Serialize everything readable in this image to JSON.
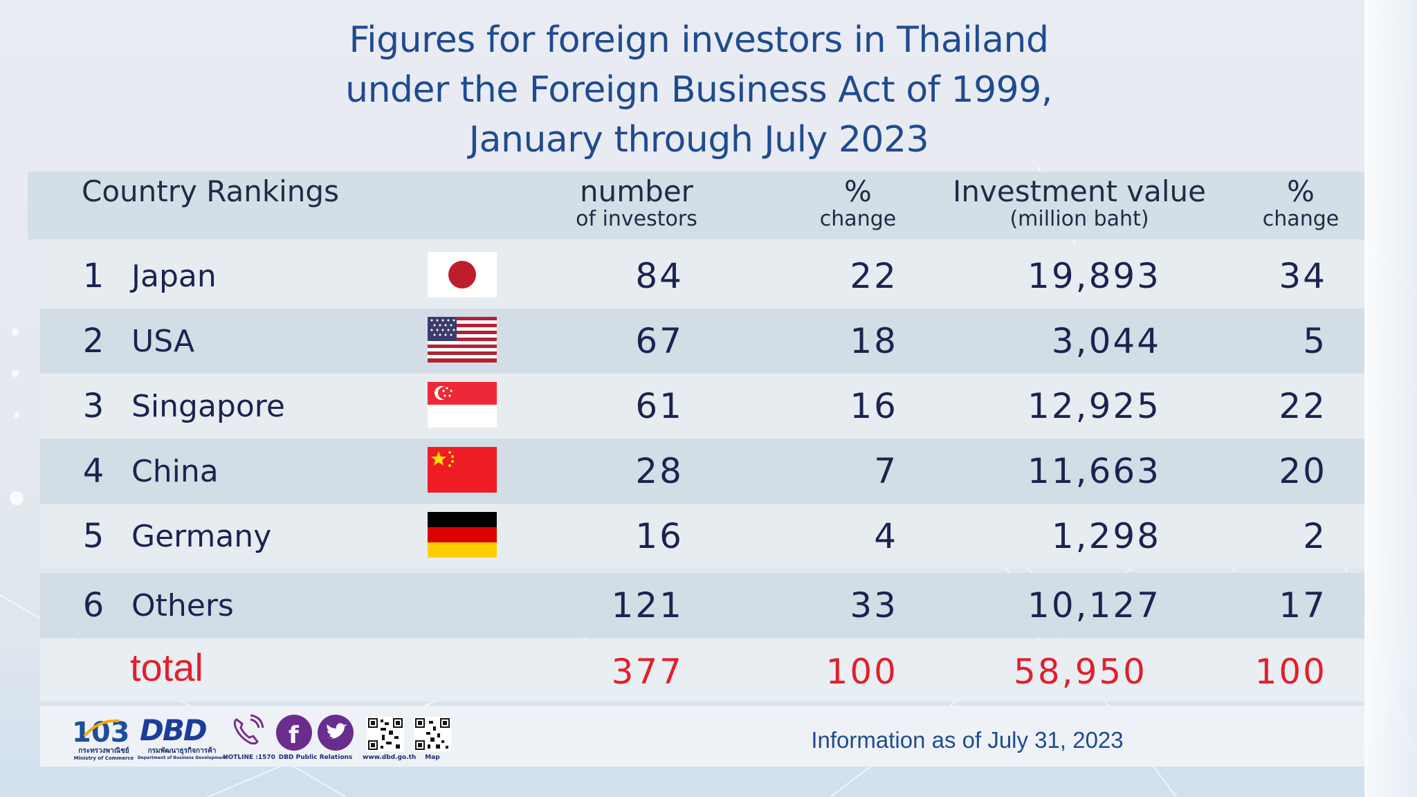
{
  "title_lines": [
    "Figures for foreign investors in Thailand",
    "under the Foreign Business Act of 1999,",
    "January through July 2023"
  ],
  "headers": {
    "country": "Country Rankings",
    "number_top": "number",
    "number_bottom": "of investors",
    "pct1_top": "%",
    "pct1_bottom": "change",
    "value_top": "Investment value",
    "value_bottom": "(million baht)",
    "pct2_top": "%",
    "pct2_bottom": "change"
  },
  "rows": [
    {
      "rank": "1",
      "country": "Japan",
      "flag": "japan-flag",
      "investors": "84",
      "pct_investors": "22",
      "value": "19,893",
      "pct_value": "34"
    },
    {
      "rank": "2",
      "country": "USA",
      "flag": "usa-flag",
      "investors": "67",
      "pct_investors": "18",
      "value": "3,044",
      "pct_value": "5"
    },
    {
      "rank": "3",
      "country": "Singapore",
      "flag": "singapore-flag",
      "investors": "61",
      "pct_investors": "16",
      "value": "12,925",
      "pct_value": "22"
    },
    {
      "rank": "4",
      "country": "China",
      "flag": "china-flag",
      "investors": "28",
      "pct_investors": "7",
      "value": "11,663",
      "pct_value": "20"
    },
    {
      "rank": "5",
      "country": "Germany",
      "flag": "germany-flag",
      "investors": "16",
      "pct_investors": "4",
      "value": "1,298",
      "pct_value": "2"
    },
    {
      "rank": "6",
      "country": "Others",
      "flag": "",
      "investors": "121",
      "pct_investors": "33",
      "value": "10,127",
      "pct_value": "17"
    }
  ],
  "total": {
    "label": "total",
    "investors": "377",
    "pct_investors": "100",
    "value": "58,950",
    "pct_value": "100"
  },
  "footer": {
    "note": "Information as of July 31, 2023",
    "ministry_caption": "กระทรวงพาณิชย์",
    "ministry_sub": "Ministry of Commerce",
    "dbd_caption": "กรมพัฒนาธุรกิจการค้า",
    "dbd_sub": "Department of Business Development",
    "hotline": "HOTLINE :1570",
    "social": "DBD Public Relations",
    "website": "www.dbd.go.th",
    "map": "Map",
    "logo_text": "DBD",
    "anniversary": "103"
  },
  "colors": {
    "title": "#1f4b8f",
    "text": "#1b2350",
    "total_red": "#e0202b",
    "header_bg": "#d3dee7"
  }
}
